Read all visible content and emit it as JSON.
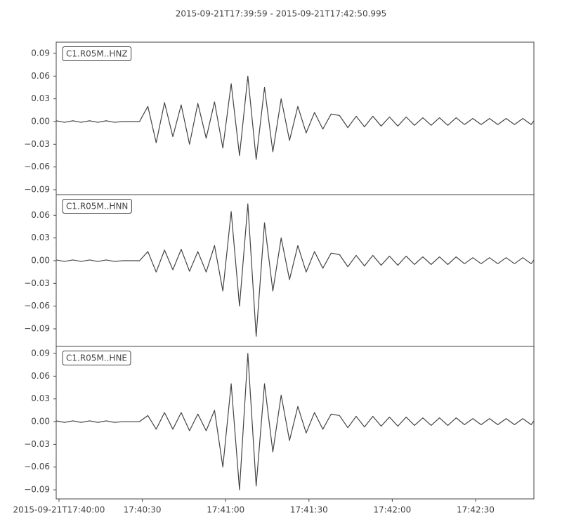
{
  "chart_data": [
    {
      "type": "line",
      "title": "2015-09-21T17:39:59  -  2015-09-21T17:42:50.995",
      "legend": "upper left",
      "grid": false,
      "xlim": [
        0,
        171.995
      ],
      "ylim": [
        -0.0965,
        0.1048
      ],
      "yticks": [
        0.09,
        0.06,
        0.03,
        {
          "value": 0,
          "label": "0.00"
        },
        {
          "value": -0.03,
          "label": "−0.03"
        },
        {
          "value": -0.06,
          "label": "−0.06"
        },
        {
          "value": -0.09,
          "label": "−0.09"
        }
      ],
      "x": [
        0,
        3,
        6,
        9,
        12,
        15,
        18,
        21,
        24,
        27,
        30,
        33,
        36,
        39,
        42,
        45,
        48,
        51,
        54,
        57,
        60,
        63,
        66,
        69,
        72,
        75,
        78,
        81,
        84,
        87,
        90,
        93,
        96,
        99,
        102,
        105,
        108,
        111,
        114,
        117,
        120,
        123,
        126,
        129,
        132,
        135,
        138,
        141,
        144,
        147,
        150,
        153,
        156,
        159,
        162,
        165,
        168,
        171,
        171.995
      ],
      "series": [
        {
          "name": "C1.R05M..HNZ",
          "color": "#444444",
          "values": [
            0.001,
            -0.001,
            0.001,
            -0.001,
            0.001,
            -0.001,
            0.001,
            -0.001,
            0,
            0,
            0,
            0.02,
            -0.028,
            0.025,
            -0.02,
            0.022,
            -0.03,
            0.024,
            -0.022,
            0.026,
            -0.035,
            0.05,
            -0.045,
            0.06,
            -0.05,
            0.045,
            -0.04,
            0.03,
            -0.025,
            0.02,
            -0.015,
            0.012,
            -0.01,
            0.01,
            0.008,
            -0.008,
            0.007,
            -0.007,
            0.007,
            -0.006,
            0.006,
            -0.006,
            0.006,
            -0.005,
            0.005,
            -0.005,
            0.005,
            -0.005,
            0.005,
            -0.004,
            0.004,
            -0.004,
            0.004,
            -0.004,
            0.004,
            -0.004,
            0.004,
            -0.004,
            0.001
          ]
        }
      ]
    },
    {
      "type": "line",
      "legend": "upper left",
      "grid": false,
      "xlim": [
        0,
        171.995
      ],
      "ylim": [
        -0.1132,
        0.0872
      ],
      "yticks": [
        0.06,
        0.03,
        {
          "value": 0,
          "label": "0.00"
        },
        {
          "value": -0.03,
          "label": "−0.03"
        },
        {
          "value": -0.06,
          "label": "−0.06"
        },
        {
          "value": -0.09,
          "label": "−0.09"
        }
      ],
      "x": [
        0,
        3,
        6,
        9,
        12,
        15,
        18,
        21,
        24,
        27,
        30,
        33,
        36,
        39,
        42,
        45,
        48,
        51,
        54,
        57,
        60,
        63,
        66,
        69,
        72,
        75,
        78,
        81,
        84,
        87,
        90,
        93,
        96,
        99,
        102,
        105,
        108,
        111,
        114,
        117,
        120,
        123,
        126,
        129,
        132,
        135,
        138,
        141,
        144,
        147,
        150,
        153,
        156,
        159,
        162,
        165,
        168,
        171,
        171.995
      ],
      "series": [
        {
          "name": "C1.R05M..HNN",
          "color": "#444444",
          "values": [
            0.001,
            -0.001,
            0.001,
            -0.001,
            0.001,
            -0.001,
            0.001,
            -0.001,
            0,
            0,
            0,
            0.012,
            -0.015,
            0.014,
            -0.012,
            0.015,
            -0.014,
            0.012,
            -0.015,
            0.02,
            -0.04,
            0.065,
            -0.06,
            0.075,
            -0.1,
            0.05,
            -0.04,
            0.03,
            -0.025,
            0.02,
            -0.015,
            0.012,
            -0.01,
            0.01,
            0.008,
            -0.008,
            0.007,
            -0.007,
            0.007,
            -0.006,
            0.006,
            -0.006,
            0.006,
            -0.005,
            0.005,
            -0.005,
            0.005,
            -0.005,
            0.005,
            -0.004,
            0.004,
            -0.004,
            0.004,
            -0.004,
            0.004,
            -0.004,
            0.004,
            -0.004,
            0.001
          ]
        }
      ]
    },
    {
      "type": "line",
      "legend": "upper left",
      "grid": false,
      "xlim": [
        0,
        171.995
      ],
      "ylim": [
        -0.102,
        0.0993
      ],
      "yticks": [
        0.09,
        0.06,
        0.03,
        {
          "value": 0,
          "label": "0.00"
        },
        {
          "value": -0.03,
          "label": "−0.03"
        },
        {
          "value": -0.06,
          "label": "−0.06"
        },
        {
          "value": -0.09,
          "label": "−0.09"
        }
      ],
      "xticks": [
        {
          "value": 1,
          "label": "2015-09-21T17:40:00"
        },
        {
          "value": 31,
          "label": "17:40:30"
        },
        {
          "value": 61,
          "label": "17:41:00"
        },
        {
          "value": 91,
          "label": "17:41:30"
        },
        {
          "value": 121,
          "label": "17:42:00"
        },
        {
          "value": 151,
          "label": "17:42:30"
        }
      ],
      "x": [
        0,
        3,
        6,
        9,
        12,
        15,
        18,
        21,
        24,
        27,
        30,
        33,
        36,
        39,
        42,
        45,
        48,
        51,
        54,
        57,
        60,
        63,
        66,
        69,
        72,
        75,
        78,
        81,
        84,
        87,
        90,
        93,
        96,
        99,
        102,
        105,
        108,
        111,
        114,
        117,
        120,
        123,
        126,
        129,
        132,
        135,
        138,
        141,
        144,
        147,
        150,
        153,
        156,
        159,
        162,
        165,
        168,
        171,
        171.995
      ],
      "series": [
        {
          "name": "C1.R05M..HNE",
          "color": "#444444",
          "values": [
            0.001,
            -0.001,
            0.001,
            -0.001,
            0.001,
            -0.001,
            0.001,
            -0.001,
            0,
            0,
            0,
            0.008,
            -0.01,
            0.012,
            -0.01,
            0.012,
            -0.012,
            0.01,
            -0.012,
            0.015,
            -0.06,
            0.05,
            -0.09,
            0.09,
            -0.085,
            0.05,
            -0.04,
            0.035,
            -0.025,
            0.02,
            -0.015,
            0.012,
            -0.01,
            0.01,
            0.008,
            -0.008,
            0.007,
            -0.007,
            0.007,
            -0.006,
            0.006,
            -0.006,
            0.006,
            -0.005,
            0.005,
            -0.005,
            0.005,
            -0.005,
            0.005,
            -0.004,
            0.004,
            -0.004,
            0.004,
            -0.004,
            0.004,
            -0.004,
            0.004,
            -0.004,
            0.001
          ]
        }
      ]
    }
  ]
}
